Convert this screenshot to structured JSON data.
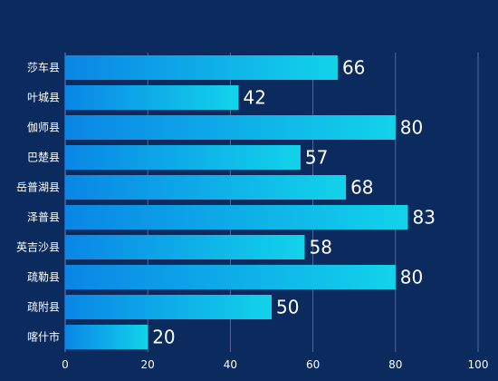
{
  "colors": {
    "background": "#0b2a5e",
    "bar_start": "#0a86e6",
    "bar_end": "#12d3ea",
    "gridline": "#6f84b8",
    "axis_text": "#ffffff",
    "value_text": "#ffffff"
  },
  "chart_data": {
    "type": "bar",
    "orientation": "horizontal",
    "categories": [
      "莎车县",
      "叶城县",
      "伽师县",
      "巴楚县",
      "岳普湖县",
      "泽普县",
      "英吉沙县",
      "疏勒县",
      "疏附县",
      "喀什市"
    ],
    "values": [
      66,
      42,
      80,
      57,
      68,
      83,
      58,
      80,
      50,
      20
    ],
    "xlim": [
      0,
      100
    ],
    "xticks": [
      0,
      20,
      40,
      60,
      80,
      100
    ],
    "grid": true,
    "data_labels": true,
    "title": "",
    "xlabel": "",
    "ylabel": ""
  }
}
